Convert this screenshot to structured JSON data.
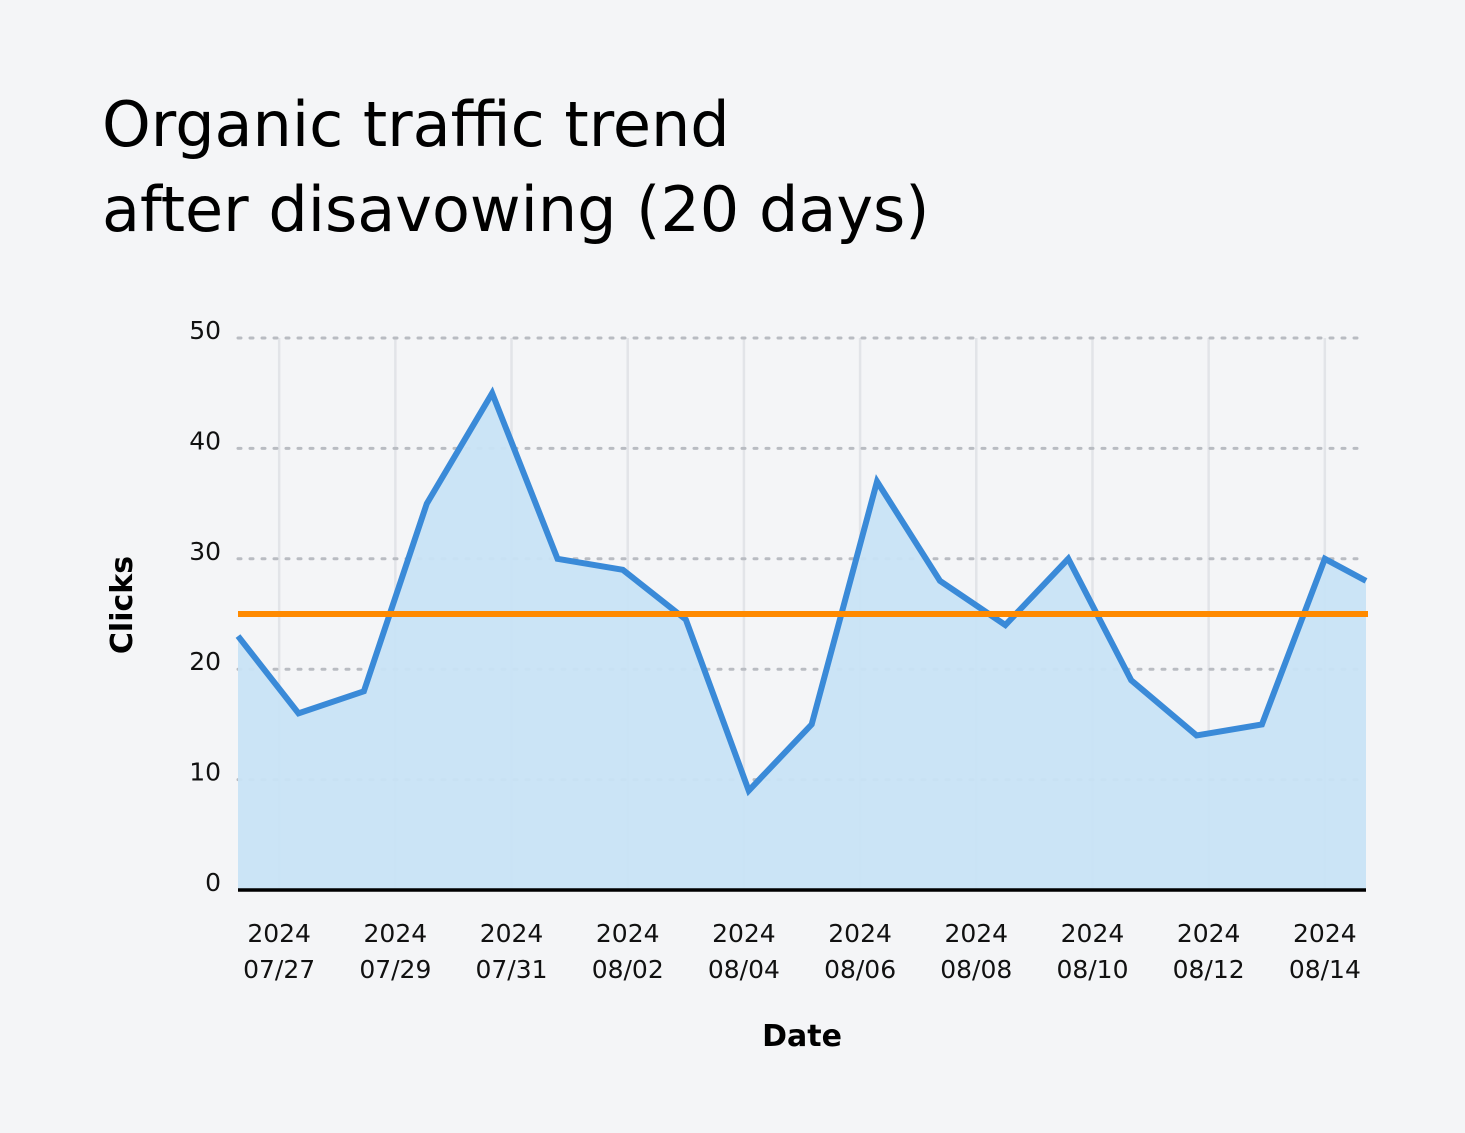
{
  "chart_data": {
    "type": "area",
    "title": [
      "Organic traffic trend",
      "after disavowing (20 days)"
    ],
    "xlabel": "Date",
    "ylabel": "Clicks",
    "ylim": [
      0,
      50
    ],
    "xlim": [
      "2024-07-26T07:00",
      "2024-08-14T17:00"
    ],
    "yticks": [
      0,
      10,
      20,
      30,
      40,
      50
    ],
    "xticks": [
      {
        "date": "2024-07-27",
        "label": [
          "2024",
          "07/27"
        ]
      },
      {
        "date": "2024-07-29",
        "label": [
          "2024",
          "07/29"
        ]
      },
      {
        "date": "2024-07-31",
        "label": [
          "2024",
          "07/31"
        ]
      },
      {
        "date": "2024-08-02",
        "label": [
          "2024",
          "08/02"
        ]
      },
      {
        "date": "2024-08-04",
        "label": [
          "2024",
          "08/04"
        ]
      },
      {
        "date": "2024-08-06",
        "label": [
          "2024",
          "08/06"
        ]
      },
      {
        "date": "2024-08-08",
        "label": [
          "2024",
          "08/08"
        ]
      },
      {
        "date": "2024-08-10",
        "label": [
          "2024",
          "08/10"
        ]
      },
      {
        "date": "2024-08-12",
        "label": [
          "2024",
          "08/12"
        ]
      },
      {
        "date": "2024-08-14",
        "label": [
          "2024",
          "08/14"
        ]
      }
    ],
    "grid": {
      "x": "solid",
      "y": "dotted"
    },
    "series": [
      {
        "x": [
          "2024-07-26T07:00",
          "2024-07-27T08:00",
          "2024-07-28T11:00",
          "2024-07-29T13:00",
          "2024-07-30T16:00",
          "2024-07-31T19:00",
          "2024-08-01T22:00",
          "2024-08-03T00:00",
          "2024-08-04T02:00",
          "2024-08-05T04:00",
          "2024-08-06T07:00",
          "2024-08-07T09:00",
          "2024-08-08T12:00",
          "2024-08-09T14:00",
          "2024-08-10T16:00",
          "2024-08-11T19:00",
          "2024-08-12T22:00",
          "2024-08-14T00:00",
          "2024-08-14T17:00"
        ],
        "values": [
          23,
          16,
          18,
          35,
          45,
          30,
          29,
          24.5,
          9,
          15,
          37,
          28,
          24,
          30,
          19,
          14,
          15,
          30,
          28
        ],
        "color": "#3a8ad8",
        "fill": "#c8e3f5"
      }
    ],
    "reference_line": {
      "value": 25,
      "color": "#ff8a00"
    }
  }
}
